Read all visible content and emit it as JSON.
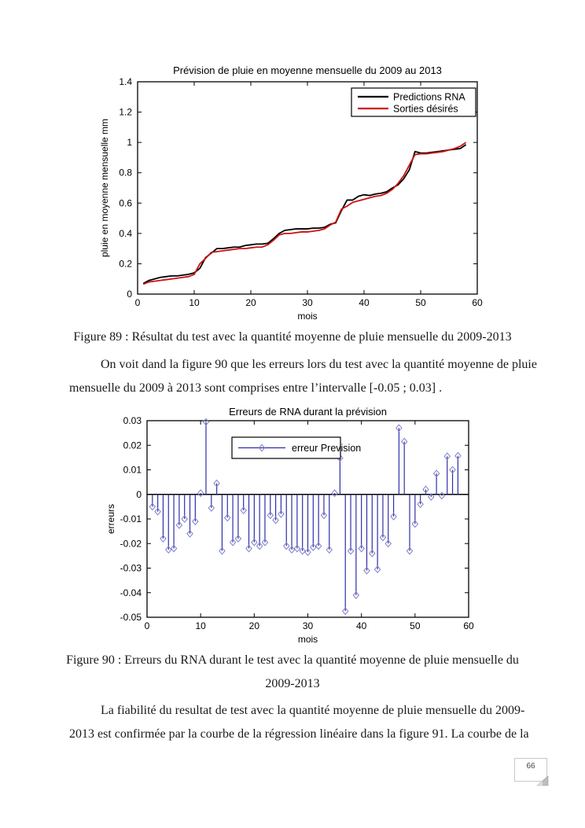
{
  "document": {
    "figure89_caption": "Figure 89 : Résultat du test  avec la quantité moyenne de pluie mensuelle du 2009-2013",
    "paragraph1_lines": [
      "On voit dand la figure 90 que les erreurs lors du test avec la quantité moyenne de pluie",
      "mensuelle du 2009 à 2013 sont comprises entre l’intervalle [-0.05 ; 0.03] ."
    ],
    "figure90_caption_lines": [
      "Figure 90 : Erreurs du RNA durant le test avec la quantité moyenne de pluie mensuelle du",
      "2009-2013"
    ],
    "paragraph2_lines": [
      "La fiabilité du resultat de test avec  la quantité moyenne de pluie mensuelle du 2009-",
      "2013 est confirmée par la courbe de la régression linéaire dans la figure 91.  La courbe de la"
    ],
    "page_number": "66"
  },
  "chart_data": [
    {
      "type": "line",
      "title": "Prévision de pluie en moyenne mensuelle du 2009 au 2013",
      "xlabel": "mois",
      "ylabel": "pluie en moyenne mensuelle mm",
      "xlim": [
        0,
        60
      ],
      "ylim": [
        0,
        1.4
      ],
      "xticks": [
        0,
        10,
        20,
        30,
        40,
        50,
        60
      ],
      "yticks": [
        0,
        0.2,
        0.4,
        0.6,
        0.8,
        1,
        1.2,
        1.4
      ],
      "grid": false,
      "legend_position": "top-right",
      "x": [
        1,
        2,
        3,
        4,
        5,
        6,
        7,
        8,
        9,
        10,
        11,
        12,
        13,
        14,
        15,
        16,
        17,
        18,
        19,
        20,
        21,
        22,
        23,
        24,
        25,
        26,
        27,
        28,
        29,
        30,
        31,
        32,
        33,
        34,
        35,
        36,
        37,
        38,
        39,
        40,
        41,
        42,
        43,
        44,
        45,
        46,
        47,
        48,
        49,
        50,
        51,
        52,
        53,
        54,
        55,
        56,
        57,
        58
      ],
      "series": [
        {
          "name": "Predictions RNA",
          "color": "#000000",
          "values": [
            0.07,
            0.09,
            0.1,
            0.11,
            0.115,
            0.12,
            0.12,
            0.125,
            0.13,
            0.14,
            0.17,
            0.24,
            0.27,
            0.3,
            0.3,
            0.305,
            0.31,
            0.31,
            0.32,
            0.325,
            0.33,
            0.33,
            0.335,
            0.365,
            0.4,
            0.42,
            0.425,
            0.43,
            0.43,
            0.43,
            0.435,
            0.435,
            0.44,
            0.46,
            0.47,
            0.55,
            0.62,
            0.62,
            0.645,
            0.655,
            0.65,
            0.66,
            0.665,
            0.675,
            0.7,
            0.72,
            0.76,
            0.82,
            0.94,
            0.93,
            0.93,
            0.935,
            0.94,
            0.945,
            0.95,
            0.955,
            0.96,
            0.985
          ]
        },
        {
          "name": "Sorties désirés",
          "color": "#cc1111",
          "values": [
            0.065,
            0.08,
            0.085,
            0.09,
            0.095,
            0.1,
            0.105,
            0.11,
            0.115,
            0.13,
            0.2,
            0.235,
            0.275,
            0.28,
            0.285,
            0.29,
            0.295,
            0.3,
            0.3,
            0.305,
            0.31,
            0.31,
            0.325,
            0.355,
            0.39,
            0.4,
            0.4,
            0.405,
            0.41,
            0.41,
            0.415,
            0.42,
            0.43,
            0.455,
            0.475,
            0.56,
            0.58,
            0.605,
            0.615,
            0.625,
            0.635,
            0.645,
            0.65,
            0.665,
            0.69,
            0.73,
            0.78,
            0.85,
            0.92,
            0.925,
            0.925,
            0.93,
            0.935,
            0.94,
            0.95,
            0.96,
            0.975,
            1.0
          ]
        }
      ]
    },
    {
      "type": "stem",
      "title": "Erreurs de RNA durant la prévision",
      "xlabel": "mois",
      "ylabel": "erreurs",
      "xlim": [
        0,
        60
      ],
      "ylim": [
        -0.05,
        0.03
      ],
      "xticks": [
        0,
        10,
        20,
        30,
        40,
        50,
        60
      ],
      "yticks": [
        -0.05,
        -0.04,
        -0.03,
        -0.02,
        -0.01,
        0,
        0.01,
        0.02,
        0.03
      ],
      "grid": false,
      "legend_label": "erreur Prevision",
      "legend_position": "top-center",
      "color": "#2e2ea8",
      "marker_color": "#8080cc",
      "x": [
        1,
        2,
        3,
        4,
        5,
        6,
        7,
        8,
        9,
        10,
        11,
        12,
        13,
        14,
        15,
        16,
        17,
        18,
        19,
        20,
        21,
        22,
        23,
        24,
        25,
        26,
        27,
        28,
        29,
        30,
        31,
        32,
        33,
        34,
        35,
        36,
        37,
        38,
        39,
        40,
        41,
        42,
        43,
        44,
        45,
        46,
        47,
        48,
        49,
        50,
        51,
        52,
        53,
        54,
        55,
        56,
        57,
        58
      ],
      "values": [
        -0.005,
        -0.007,
        -0.018,
        -0.0225,
        -0.022,
        -0.0125,
        -0.01,
        -0.016,
        -0.011,
        0.0005,
        0.0295,
        -0.0055,
        0.0045,
        -0.023,
        -0.0095,
        -0.0195,
        -0.018,
        -0.0065,
        -0.022,
        -0.0195,
        -0.021,
        -0.0195,
        -0.0085,
        -0.0105,
        -0.008,
        -0.021,
        -0.0225,
        -0.022,
        -0.023,
        -0.0235,
        -0.0215,
        -0.021,
        -0.0085,
        -0.0225,
        0.0005,
        0.0148,
        -0.0475,
        -0.023,
        -0.041,
        -0.022,
        -0.031,
        -0.024,
        -0.0305,
        -0.0175,
        -0.02,
        -0.009,
        0.027,
        0.0215,
        -0.023,
        -0.012,
        -0.004,
        0.002,
        -0.001,
        0.0085,
        -0.0005,
        0.0155,
        0.01,
        0.0157
      ]
    }
  ]
}
